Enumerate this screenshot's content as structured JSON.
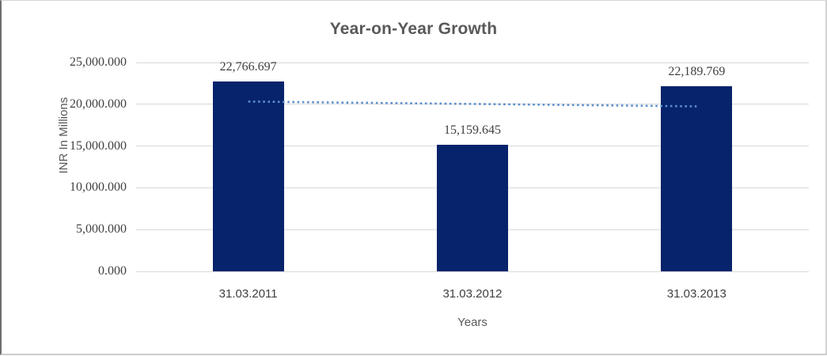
{
  "chart_data": {
    "type": "bar",
    "title": "Year-on-Year Growth",
    "xlabel": "Years",
    "ylabel": "INR In Millions",
    "categories": [
      "31.03.2011",
      "31.03.2012",
      "31.03.2013"
    ],
    "values": [
      22766.697,
      15159.645,
      22189.769
    ],
    "data_labels": [
      "22,766.697",
      "15,159.645",
      "22,189.769"
    ],
    "ylim": [
      0,
      25000
    ],
    "y_tick_interval": 5000,
    "y_tick_labels": [
      "0.000",
      "5,000.000",
      "10,000.000",
      "15,000.000",
      "20,000.000",
      "25,000.000"
    ],
    "grid": true,
    "legend": "none",
    "bar_color": "#06236B",
    "gridline_color": "#D9D9D9",
    "title_color": "#595959",
    "tick_label_color": "#404040",
    "trendline": {
      "type": "linear",
      "style": "dotted",
      "color": "#5B8FCC",
      "start_value": 20327,
      "end_value": 19750
    }
  }
}
